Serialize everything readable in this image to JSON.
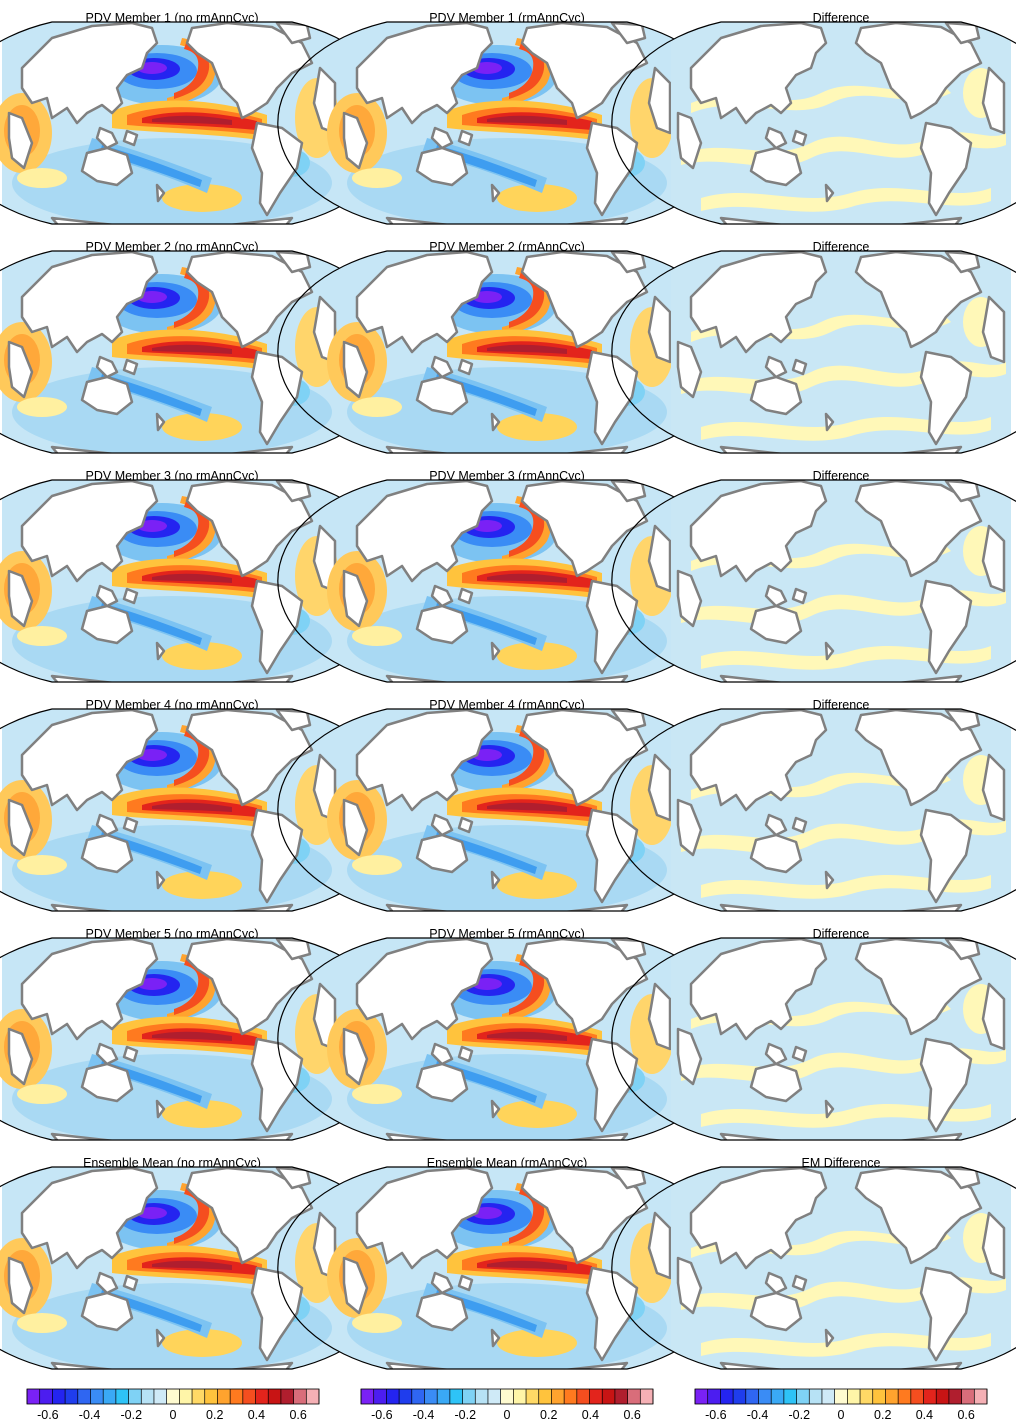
{
  "figure": {
    "rows": [
      {
        "left_title": "PDV Member 1 (no rmAnnCyc)",
        "mid_title": "PDV Member 1 (rmAnnCyc)",
        "right_title": "Difference"
      },
      {
        "left_title": "PDV Member 2 (no rmAnnCyc)",
        "mid_title": "PDV Member 2 (rmAnnCyc)",
        "right_title": "Difference"
      },
      {
        "left_title": "PDV Member 3 (no rmAnnCyc)",
        "mid_title": "PDV Member 3 (rmAnnCyc)",
        "right_title": "Difference"
      },
      {
        "left_title": "PDV Member 4 (no rmAnnCyc)",
        "mid_title": "PDV Member 4 (rmAnnCyc)",
        "right_title": "Difference"
      },
      {
        "left_title": "PDV Member 5 (no rmAnnCyc)",
        "mid_title": "PDV Member 5 (rmAnnCyc)",
        "right_title": "Difference"
      },
      {
        "left_title": "Ensemble Mean (no rmAnnCyc)",
        "mid_title": "Ensemble Mean (rmAnnCyc)",
        "right_title": "EM Difference"
      }
    ]
  },
  "colorbar": {
    "tick_labels": [
      "-0.6",
      "-0.4",
      "-0.2",
      "0",
      "0.2",
      "0.4",
      "0.6"
    ],
    "tick_values": [
      -0.6,
      -0.4,
      -0.2,
      0,
      0.2,
      0.4,
      0.6
    ],
    "range": [
      -0.7,
      0.7
    ],
    "colors": [
      "#7a21f5",
      "#4c1df0",
      "#2424f0",
      "#1f3ded",
      "#2f66f2",
      "#3a8cf5",
      "#3aa9f5",
      "#2ec3f7",
      "#7fd2f5",
      "#b7e2f5",
      "#cfeaf7",
      "#fffbd0",
      "#fff5a8",
      "#ffd966",
      "#ffc33d",
      "#ffa32e",
      "#ff7a1f",
      "#f54e1f",
      "#e3241c",
      "#c81414",
      "#b01e2e",
      "#d96d7a",
      "#f5b0b5"
    ]
  },
  "colors": {
    "land": "#ffffff",
    "coast": "#808080",
    "neg_light": "#c9e7f5",
    "pos_light": "#fff8b8",
    "ocean_base": "#c6e6f6"
  }
}
